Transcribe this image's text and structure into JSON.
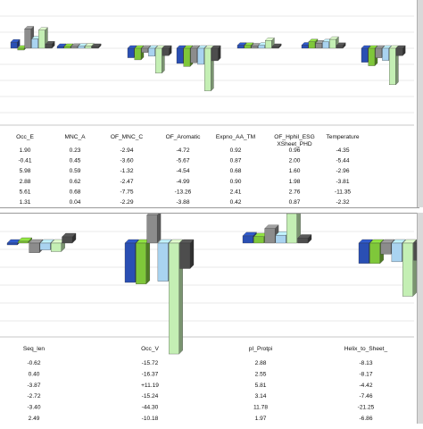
{
  "colors": [
    "#2a4fb3",
    "#7fc73a",
    "#8c8c8c",
    "#a9d3f0",
    "#c4efb4",
    "#4d4d4d"
  ],
  "chart_data": [
    {
      "type": "bar",
      "grouping": "3d-clustered",
      "series_count": 6,
      "grid": true,
      "legend": "none",
      "columns": [
        {
          "header": "Occ_E",
          "values": [
            "1.90",
            "-0.41",
            "5.98",
            "2.88",
            "5.61",
            "1.31"
          ]
        },
        {
          "header": "MNC_A",
          "values": [
            "0.23",
            "0.45",
            "0.59",
            "0.62",
            "0.68",
            "0.04"
          ]
        },
        {
          "header": "OF_MNC_C",
          "values": [
            "-2.94",
            "-3.60",
            "-1.32",
            "-2.47",
            "-7.75",
            "-2.29"
          ]
        },
        {
          "header": "OF_Aromatic",
          "values": [
            "-4.72",
            "-5.67",
            "-4.54",
            "-4.99",
            "-13.26",
            "-3.88"
          ]
        },
        {
          "header": "Expno_AA_TM",
          "values": [
            "0.92",
            "0.87",
            "0.68",
            "0.90",
            "2.41",
            "0.42"
          ]
        },
        {
          "header": "OF_Hphil_ESG\nXSheet_PHD",
          "values": [
            "0.96",
            "2.00",
            "1.60",
            "1.98",
            "2.76",
            "0.87"
          ]
        },
        {
          "header": "Temperature",
          "values": [
            "-4.35",
            "-5.44",
            "-2.96",
            "-3.81",
            "-11.35",
            "-2.32"
          ]
        }
      ]
    },
    {
      "type": "bar",
      "grouping": "3d-clustered",
      "series_count": 6,
      "grid": true,
      "legend": "none",
      "columns": [
        {
          "header": "Seq_len",
          "values": [
            "-0.62",
            "0.40",
            "-3.87",
            "-2.72",
            "-3.40",
            "2.49"
          ]
        },
        {
          "header": "Occ_V",
          "values": [
            "-15.72",
            "-16.37",
            "+11.19",
            "-15.24",
            "-44.30",
            "-10.18"
          ]
        },
        {
          "header": "pI_Protpi",
          "values": [
            "2.88",
            "2.55",
            "5.81",
            "3.14",
            "11.78",
            "1.97"
          ]
        },
        {
          "header": "Helix_to_Sheet_",
          "values": [
            "-8.13",
            "-8.17",
            "-4.42",
            "-7.46",
            "-21.25",
            "-6.86"
          ]
        }
      ]
    }
  ]
}
